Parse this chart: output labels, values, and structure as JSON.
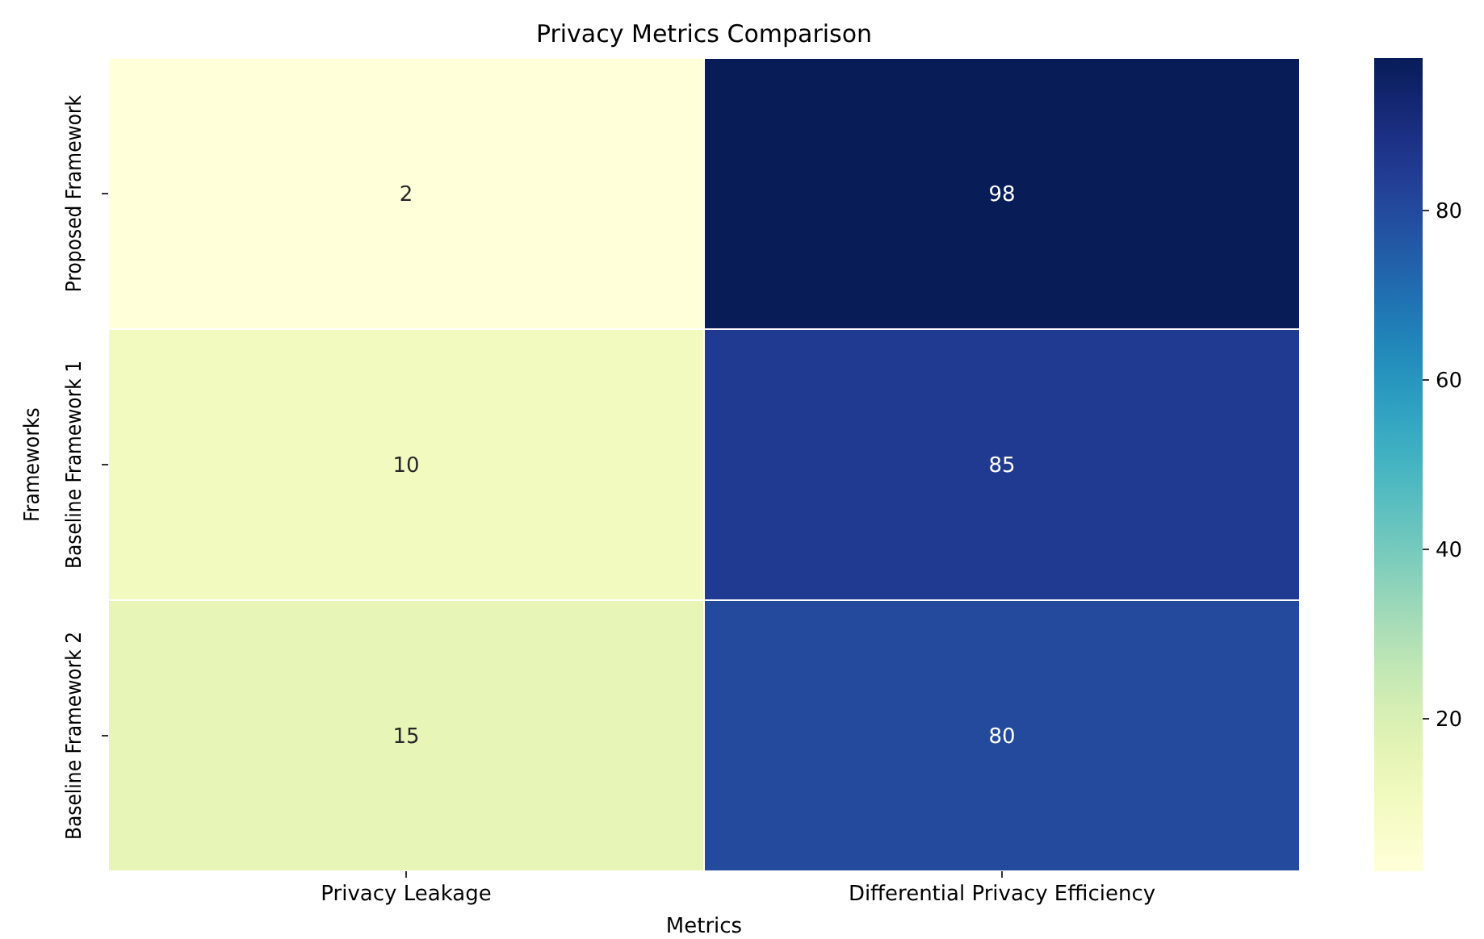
{
  "chart_data": {
    "type": "heatmap",
    "title": "Privacy Metrics Comparison",
    "xlabel": "Metrics",
    "ylabel": "Frameworks",
    "categories": [
      "Privacy Leakage",
      "Differential Privacy Efficiency"
    ],
    "y_categories": [
      "Proposed Framework",
      "Baseline Framework 1",
      "Baseline Framework 2"
    ],
    "cells": [
      [
        2,
        98
      ],
      [
        10,
        85
      ],
      [
        15,
        80
      ]
    ],
    "data_labels": true,
    "clim": [
      2,
      98
    ],
    "cticks": [
      20,
      40,
      60,
      80
    ]
  }
}
